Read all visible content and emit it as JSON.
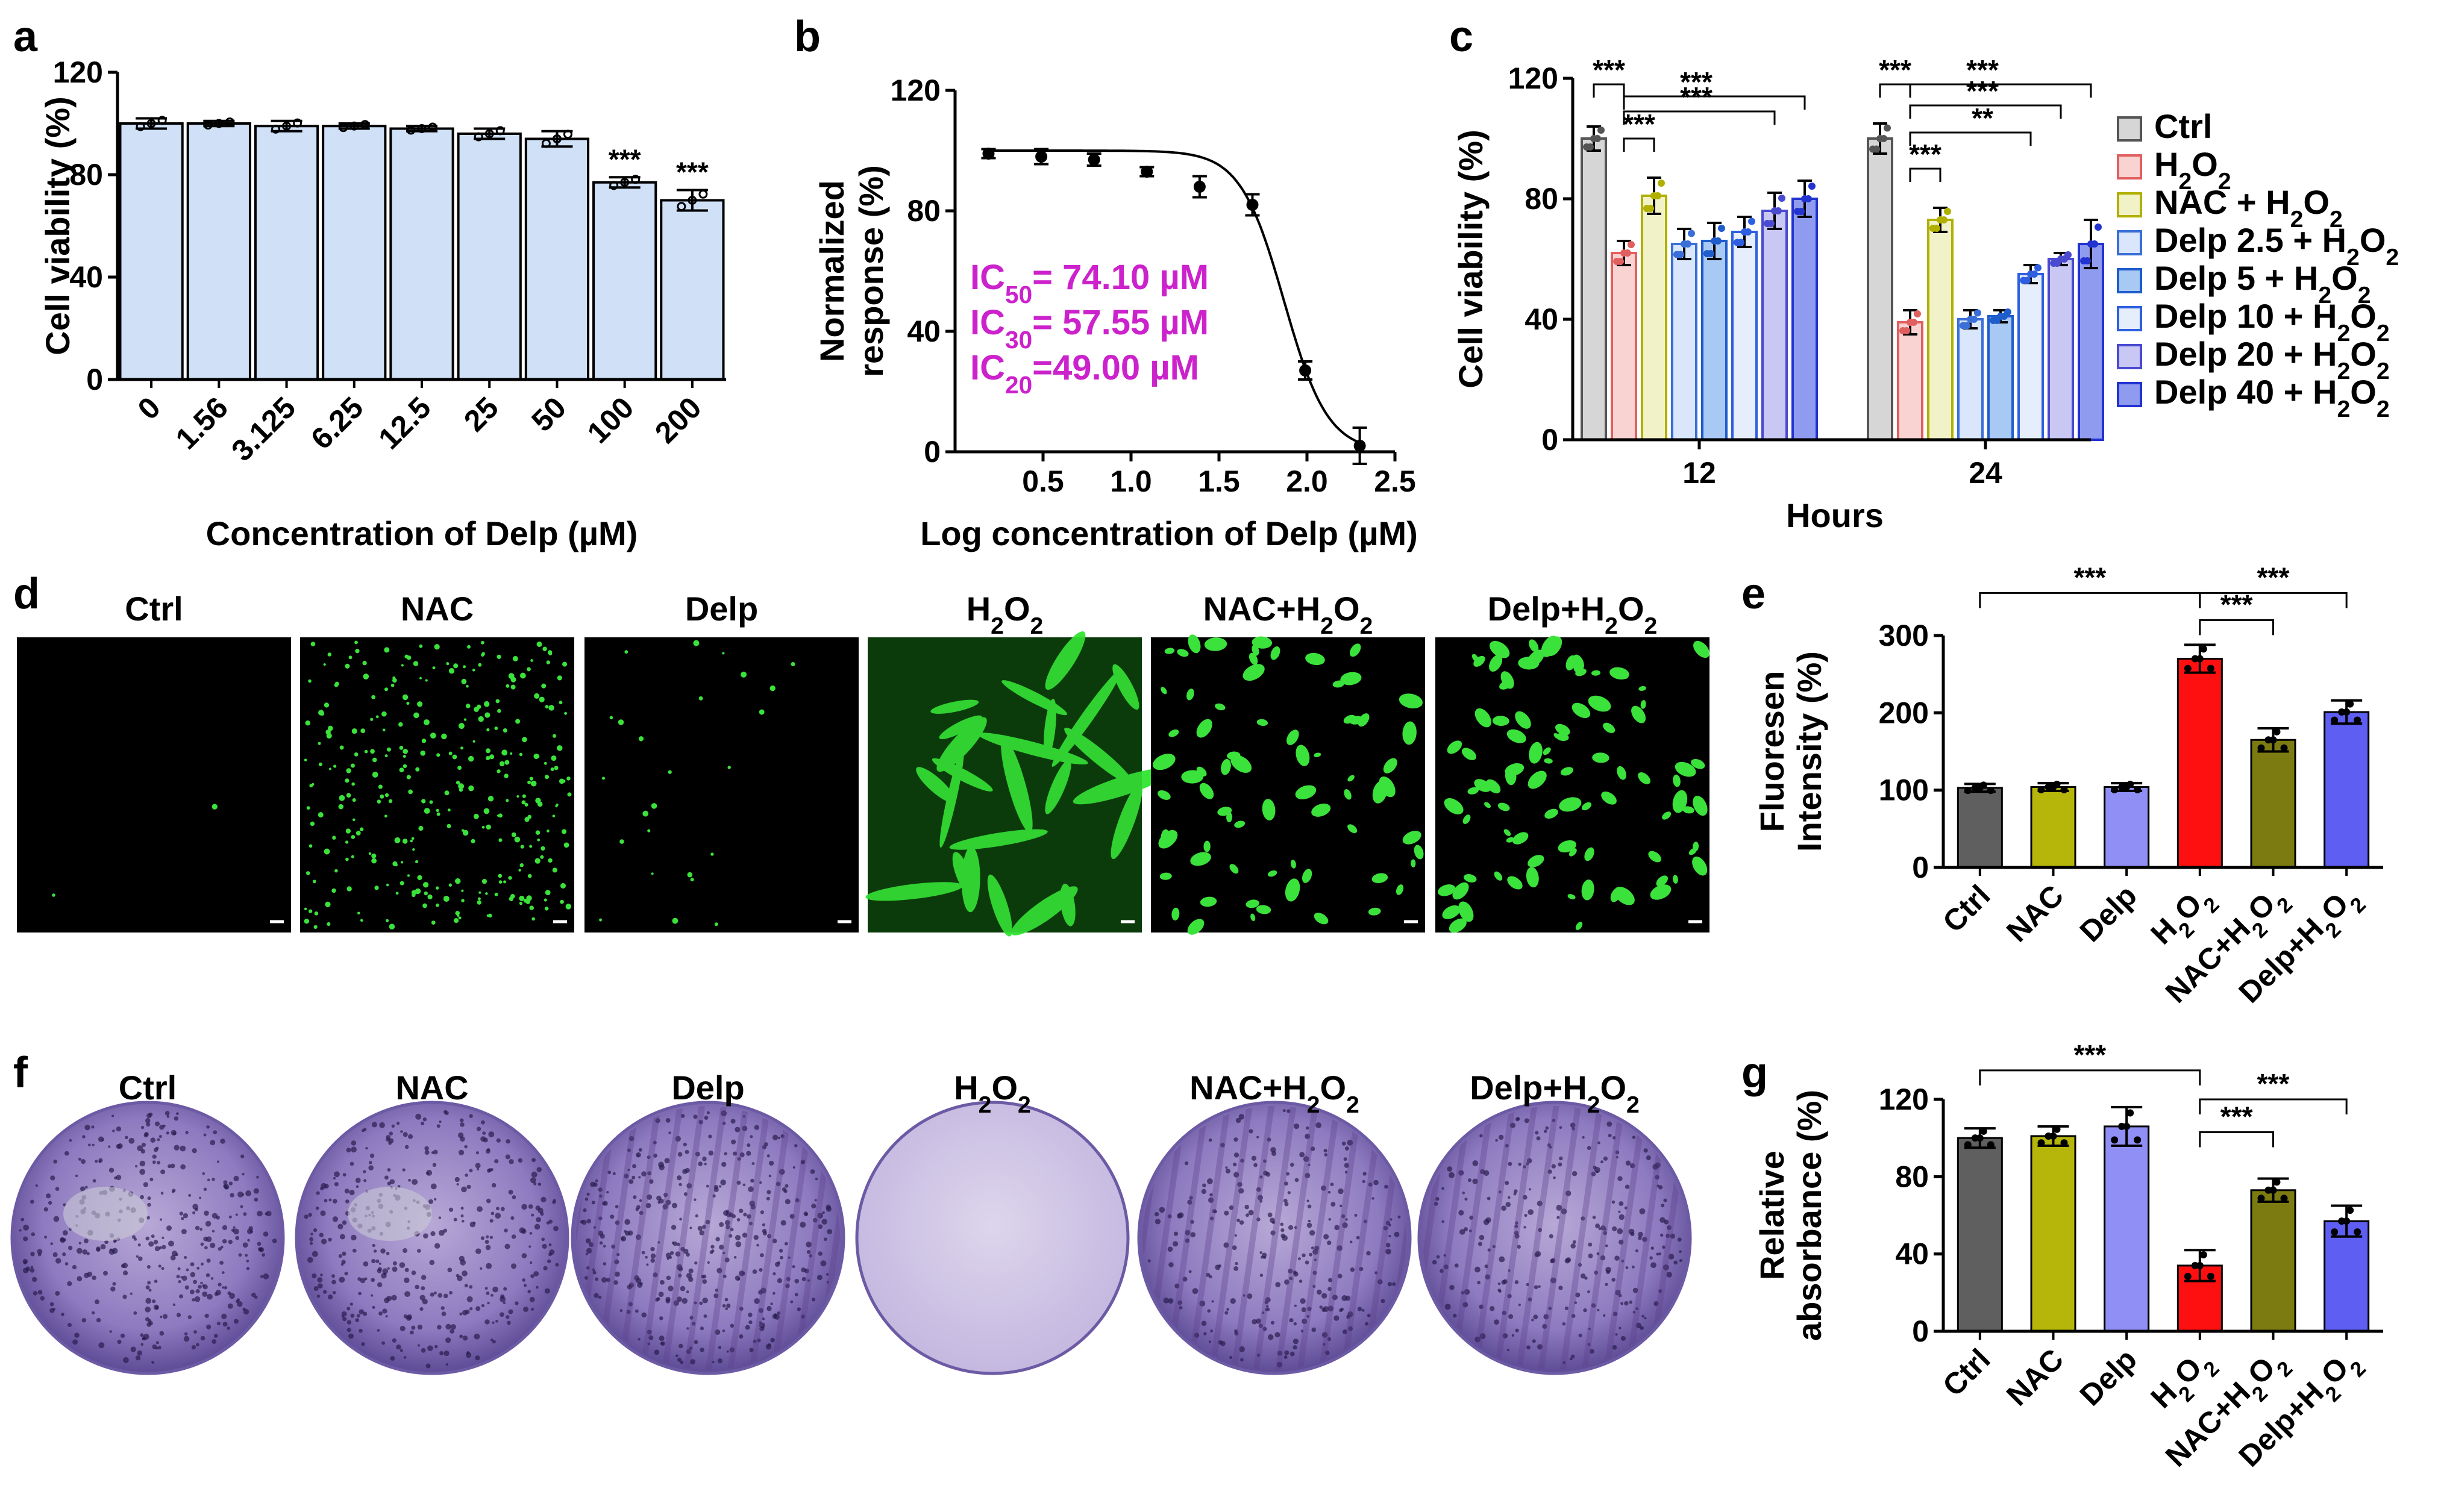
{
  "panel_labels": {
    "a": "a",
    "b": "b",
    "c": "c",
    "d": "d",
    "e": "e",
    "f": "f",
    "g": "g"
  },
  "sig": {
    "three": "***",
    "two": "**"
  },
  "chart_data": [
    {
      "panel": "a",
      "type": "bar",
      "categories": [
        "0",
        "1.56",
        "3.125",
        "6.25",
        "12.5",
        "25",
        "50",
        "100",
        "200"
      ],
      "values": [
        100,
        100,
        99,
        99,
        98,
        96,
        94,
        77,
        70
      ],
      "errors": [
        2,
        1,
        2,
        1,
        1,
        2,
        3,
        2,
        4
      ],
      "sig": [
        "",
        "",
        "",
        "",
        "",
        "",
        "",
        "***",
        "***"
      ],
      "bar_color": "#cfe0f7",
      "xlabel": "Concentration of Delp (µM)",
      "ylabel": "Cell viability (%)",
      "ylim": [
        0,
        120
      ],
      "yticks": [
        "0",
        "40",
        "80",
        "120"
      ]
    },
    {
      "panel": "b",
      "type": "scatter",
      "x": [
        0.19,
        0.49,
        0.79,
        1.09,
        1.39,
        1.69,
        1.99,
        2.3
      ],
      "y": [
        99,
        98,
        97,
        93,
        88,
        82,
        27,
        2
      ],
      "errors": [
        1.5,
        2.5,
        2,
        1.5,
        3.5,
        3.5,
        3,
        6
      ],
      "curve": {
        "model": "4PL",
        "top": 100,
        "bottom": 0,
        "logIC50": 1.87,
        "hill": 3.5
      },
      "xlabel": "Log concentration of Delp (µM)",
      "ylabel_line1": "Normalized",
      "ylabel_line2": "response (%)",
      "xlim": [
        0,
        2.5
      ],
      "ylim": [
        0,
        120
      ],
      "xticks": [
        "0.5",
        "1.0",
        "1.5",
        "2.0",
        "2.5"
      ],
      "yticks": [
        "0",
        "40",
        "80",
        "120"
      ],
      "ic_labels": [
        {
          "pre": "IC",
          "sub": "50",
          "post": "= 74.10 µM"
        },
        {
          "pre": "IC",
          "sub": "30",
          "post": "= 57.55 µM"
        },
        {
          "pre": "IC",
          "sub": "20",
          "post": "=49.00 µM"
        }
      ]
    },
    {
      "panel": "c",
      "type": "bar",
      "groups": [
        "12",
        "24"
      ],
      "series": [
        {
          "name": "Ctrl",
          "values": [
            100,
            100
          ],
          "errors": [
            4,
            5
          ],
          "fill": "#d6d6d6",
          "stroke": "#555555"
        },
        {
          "name": "H2O2",
          "values": [
            62,
            39
          ],
          "errors": [
            4,
            4
          ],
          "fill": "#f9d2d2",
          "stroke": "#e06060"
        },
        {
          "name": "NAC + H2O2",
          "values": [
            81,
            73
          ],
          "errors": [
            6,
            4
          ],
          "fill": "#f2f2c8",
          "stroke": "#b0b000"
        },
        {
          "name": "Delp 2.5 + H2O2",
          "values": [
            65,
            40
          ],
          "errors": [
            5,
            3
          ],
          "fill": "#d9e6fb",
          "stroke": "#3a6fd8"
        },
        {
          "name": "Delp 5 + H2O2",
          "values": [
            66,
            41
          ],
          "errors": [
            6,
            2
          ],
          "fill": "#a9c9f5",
          "stroke": "#1f5ccc"
        },
        {
          "name": "Delp 10 + H2O2",
          "values": [
            69,
            55
          ],
          "errors": [
            5,
            3
          ],
          "fill": "#e6eefc",
          "stroke": "#2e5fe0"
        },
        {
          "name": "Delp 20 + H2O2",
          "values": [
            76,
            60
          ],
          "errors": [
            6,
            2
          ],
          "fill": "#c9c7f3",
          "stroke": "#4a4ad0"
        },
        {
          "name": "Delp 40 + H2O2",
          "values": [
            80,
            65
          ],
          "errors": [
            6,
            8
          ],
          "fill": "#8f9bef",
          "stroke": "#2233d0"
        }
      ],
      "xlabel": "Hours",
      "ylabel": "Cell viability (%)",
      "ylim": [
        0,
        120
      ],
      "yticks": [
        "0",
        "40",
        "80",
        "120"
      ],
      "brackets": [
        {
          "group": 0,
          "from": 0,
          "to": 1,
          "level": 118,
          "label": "***"
        },
        {
          "group": 0,
          "from": 1,
          "to": 7,
          "level": 114,
          "label": "***"
        },
        {
          "group": 0,
          "from": 1,
          "to": 6,
          "level": 109,
          "label": "***"
        },
        {
          "group": 0,
          "from": 1,
          "to": 2,
          "level": 100,
          "label": "***"
        },
        {
          "group": 1,
          "from": 0,
          "to": 1,
          "level": 118,
          "label": "***"
        },
        {
          "group": 1,
          "from": 1,
          "to": 7,
          "level": 118,
          "label": "***"
        },
        {
          "group": 1,
          "from": 1,
          "to": 6,
          "level": 111,
          "label": "***"
        },
        {
          "group": 1,
          "from": 1,
          "to": 5,
          "level": 102,
          "label": "**"
        },
        {
          "group": 1,
          "from": 1,
          "to": 2,
          "level": 90,
          "label": "***"
        }
      ]
    },
    {
      "panel": "e",
      "type": "bar",
      "categories": [
        "Ctrl",
        "NAC",
        "Delp",
        "H2O2",
        "NAC+H2O2",
        "Delp+H2O2"
      ],
      "values": [
        103,
        104,
        104,
        270,
        165,
        201
      ],
      "errors": [
        5,
        5,
        5,
        18,
        15,
        15
      ],
      "colors": [
        "#5f5f5f",
        "#b5b50a",
        "#8f8ff5",
        "#ff1010",
        "#7b7b12",
        "#5e5ef2"
      ],
      "ylabel_line1": "Fluoresen",
      "ylabel_line2": "Intensity (%)",
      "ylim": [
        0,
        300
      ],
      "yticks": [
        "0",
        "100",
        "200",
        "300"
      ],
      "brackets": [
        {
          "from": 0,
          "to": 3,
          "level": 355,
          "label": "***"
        },
        {
          "from": 3,
          "to": 5,
          "level": 355,
          "label": "***"
        },
        {
          "from": 3,
          "to": 4,
          "level": 320,
          "label": "***"
        }
      ]
    },
    {
      "panel": "g",
      "type": "bar",
      "categories": [
        "Ctrl",
        "NAC",
        "Delp",
        "H2O2",
        "NAC+H2O2",
        "Delp+H2O2"
      ],
      "values": [
        100,
        101,
        106,
        34,
        73,
        57
      ],
      "errors": [
        5,
        5,
        10,
        8,
        6,
        8
      ],
      "colors": [
        "#5f5f5f",
        "#b5b50a",
        "#8f8ff5",
        "#ff1010",
        "#7b7b12",
        "#5e5ef2"
      ],
      "ylabel_line1": "Relative",
      "ylabel_line2": "absorbance (%)",
      "ylim": [
        0,
        120
      ],
      "yticks": [
        "0",
        "40",
        "80",
        "120"
      ],
      "brackets": [
        {
          "from": 0,
          "to": 3,
          "level": 135,
          "label": "***"
        },
        {
          "from": 3,
          "to": 5,
          "level": 120,
          "label": "***"
        },
        {
          "from": 3,
          "to": 4,
          "level": 103,
          "label": "***"
        }
      ]
    }
  ],
  "micrographs": {
    "panel": "d",
    "labels": [
      "Ctrl",
      "NAC",
      "Delp",
      "H2O2",
      "NAC+H2O2",
      "Delp+H2O2"
    ]
  },
  "plates": {
    "panel": "f",
    "labels": [
      "Ctrl",
      "NAC",
      "Delp",
      "H2O2",
      "NAC+H2O2",
      "Delp+H2O2"
    ]
  }
}
